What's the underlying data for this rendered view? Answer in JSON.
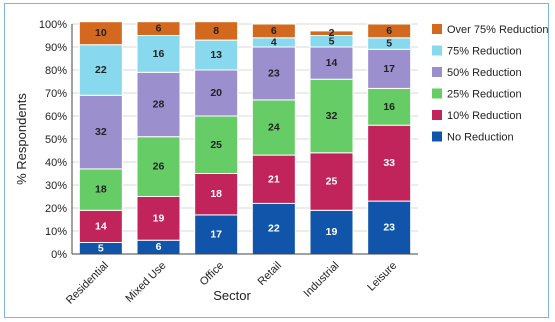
{
  "chart_data": {
    "type": "bar",
    "stacked": true,
    "title": "",
    "xlabel": "Sector",
    "ylabel": "% Respondents",
    "ylim": [
      0,
      100
    ],
    "yticks": [
      0,
      10,
      20,
      30,
      40,
      50,
      60,
      70,
      80,
      90,
      100
    ],
    "ytick_labels": [
      "0%",
      "10%",
      "20%",
      "30%",
      "40%",
      "50%",
      "60%",
      "70%",
      "80%",
      "90%",
      "100%"
    ],
    "categories": [
      "Residential",
      "Mixed Use",
      "Office",
      "Retail",
      "Industrial",
      "Leisure"
    ],
    "legend_position": "right",
    "series": [
      {
        "name": "No Reduction",
        "color": "#1155aa",
        "label_color": "#ffffff",
        "values": [
          5,
          6,
          17,
          22,
          19,
          23
        ]
      },
      {
        "name": "10% Reduction",
        "color": "#c0245a",
        "label_color": "#ffffff",
        "values": [
          14,
          19,
          18,
          21,
          25,
          33
        ]
      },
      {
        "name": "25% Reduction",
        "color": "#66cc66",
        "label_color": "#222222",
        "values": [
          18,
          26,
          25,
          24,
          32,
          16
        ]
      },
      {
        "name": "50% Reduction",
        "color": "#9b8fce",
        "label_color": "#222222",
        "values": [
          32,
          28,
          20,
          23,
          14,
          17
        ]
      },
      {
        "name": "75% Reduction",
        "color": "#88d8ee",
        "label_color": "#222222",
        "values": [
          22,
          16,
          13,
          4,
          5,
          5
        ]
      },
      {
        "name": "Over 75% Reduction",
        "color": "#d2691e",
        "label_color": "#222222",
        "values": [
          10,
          6,
          8,
          6,
          2,
          6
        ]
      }
    ]
  }
}
